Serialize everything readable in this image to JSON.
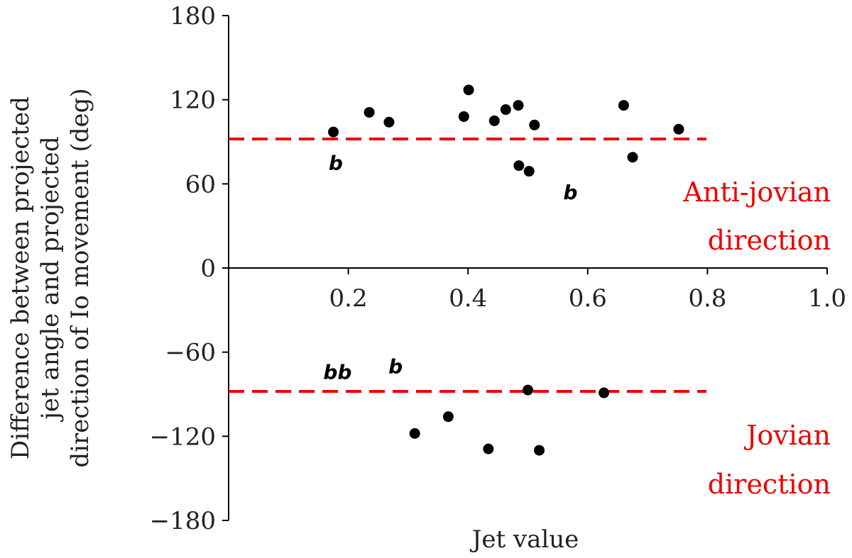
{
  "chart_data": {
    "type": "scatter",
    "title": "",
    "xlabel": "Jet value",
    "ylabel_lines": [
      "Difference between projected",
      "jet angle and projected",
      "direction of Io movement (deg)"
    ],
    "xlim": [
      0.0,
      1.0
    ],
    "ylim": [
      -180,
      180
    ],
    "x_ticks": [
      0.2,
      0.4,
      0.6,
      0.8,
      1.0
    ],
    "x_tick_labels": [
      "0.2",
      "0.4",
      "0.6",
      "0.8",
      "1.0"
    ],
    "y_ticks": [
      180,
      120,
      60,
      0,
      -60,
      -120,
      -180
    ],
    "y_tick_labels": [
      "180",
      "120",
      "60",
      "0",
      "−60",
      "−120",
      "−180"
    ],
    "grid": false,
    "series": [
      {
        "marker": "circle",
        "color": "#000000",
        "points": [
          {
            "x": 0.175,
            "y": 97
          },
          {
            "x": 0.235,
            "y": 111
          },
          {
            "x": 0.268,
            "y": 104
          },
          {
            "x": 0.393,
            "y": 108
          },
          {
            "x": 0.401,
            "y": 127
          },
          {
            "x": 0.444,
            "y": 105
          },
          {
            "x": 0.463,
            "y": 113
          },
          {
            "x": 0.484,
            "y": 116
          },
          {
            "x": 0.511,
            "y": 102
          },
          {
            "x": 0.485,
            "y": 73
          },
          {
            "x": 0.502,
            "y": 69
          },
          {
            "x": 0.66,
            "y": 116
          },
          {
            "x": 0.675,
            "y": 79
          },
          {
            "x": 0.752,
            "y": 99
          },
          {
            "x": 0.311,
            "y": -118
          },
          {
            "x": 0.367,
            "y": -106
          },
          {
            "x": 0.434,
            "y": -129
          },
          {
            "x": 0.5,
            "y": -87
          },
          {
            "x": 0.519,
            "y": -130
          },
          {
            "x": 0.627,
            "y": -89
          }
        ]
      },
      {
        "marker": "letter",
        "letter": "b",
        "color": "#000000",
        "points": [
          {
            "x": 0.179,
            "y": 75,
            "text": "b"
          },
          {
            "x": 0.571,
            "y": 54,
            "text": "b"
          },
          {
            "x": 0.182,
            "y": -74,
            "text": "bb"
          },
          {
            "x": 0.279,
            "y": -70,
            "text": "b"
          }
        ]
      }
    ],
    "reference_lines": [
      {
        "y": 92,
        "color": "#ee0000",
        "style": "dashed"
      },
      {
        "y": -88,
        "color": "#ee0000",
        "style": "dashed"
      }
    ],
    "annotations": [
      {
        "lines": [
          "Anti-jovian",
          "direction"
        ],
        "color": "#ee0000"
      },
      {
        "lines": [
          "Jovian",
          "direction"
        ],
        "color": "#ee0000"
      }
    ]
  }
}
